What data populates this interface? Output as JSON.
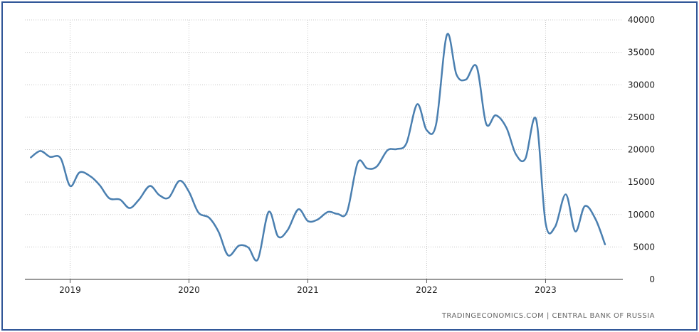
{
  "source_label": "TRADINGECONOMICS.COM | CENTRAL BANK OF RUSSIA",
  "colors": {
    "line": "#4a7fb0",
    "grid": "#c8c8c8",
    "frame": "#2f5597",
    "text": "#222222"
  },
  "chart_data": {
    "type": "line",
    "title": "",
    "xlabel": "",
    "ylabel": "",
    "xlim": [
      2018.62,
      2023.65
    ],
    "ylim": [
      0,
      40000
    ],
    "grid": true,
    "y_axis_side": "right",
    "y_ticks": [
      0,
      5000,
      10000,
      15000,
      20000,
      25000,
      30000,
      35000,
      40000
    ],
    "x_ticks": [
      {
        "value": 2019,
        "label": "2019"
      },
      {
        "value": 2020,
        "label": "2020"
      },
      {
        "value": 2021,
        "label": "2021"
      },
      {
        "value": 2022,
        "label": "2022"
      },
      {
        "value": 2023,
        "label": "2023"
      }
    ],
    "series": [
      {
        "x": [
          2018.67,
          2018.75,
          2018.83,
          2018.92,
          2019.0,
          2019.08,
          2019.17,
          2019.25,
          2019.33,
          2019.42,
          2019.5,
          2019.58,
          2019.67,
          2019.75,
          2019.83,
          2019.92,
          2020.0,
          2020.08,
          2020.17,
          2020.25,
          2020.33,
          2020.42,
          2020.5,
          2020.58,
          2020.67,
          2020.75,
          2020.83,
          2020.92,
          2021.0,
          2021.08,
          2021.17,
          2021.25,
          2021.33,
          2021.42,
          2021.5,
          2021.58,
          2021.67,
          2021.75,
          2021.83,
          2021.92,
          2022.0,
          2022.08,
          2022.17,
          2022.25,
          2022.33,
          2022.42,
          2022.5,
          2022.58,
          2022.67,
          2022.75,
          2022.83,
          2022.92,
          2023.0,
          2023.08,
          2023.17,
          2023.25,
          2023.33,
          2023.42,
          2023.5
        ],
        "values": [
          18800,
          19800,
          18900,
          18700,
          14400,
          16500,
          15900,
          14500,
          12500,
          12300,
          11000,
          12300,
          14400,
          13000,
          12600,
          15200,
          13500,
          10300,
          9500,
          7300,
          3700,
          5200,
          4900,
          3100,
          10400,
          6600,
          7600,
          10800,
          9000,
          9200,
          10400,
          10100,
          10400,
          18000,
          17100,
          17400,
          19900,
          20100,
          21000,
          27000,
          23000,
          24000,
          37700,
          31600,
          30800,
          32800,
          24000,
          25300,
          23400,
          19300,
          18600,
          24700,
          8700,
          8100,
          13100,
          7400,
          11300,
          9300,
          5400
        ]
      }
    ]
  }
}
